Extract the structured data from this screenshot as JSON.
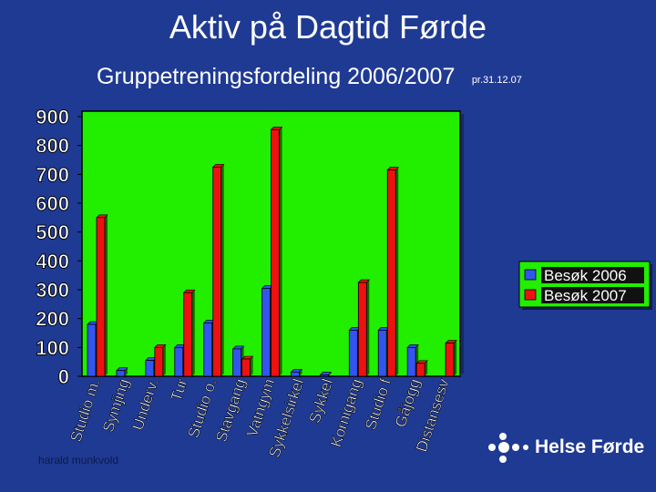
{
  "title": "Aktiv på Dagtid Førde",
  "subtitle": "Gruppetreningsfordeling 2006/2007",
  "subtitle_note": "pr.31.12.07",
  "author": "harald munkvold",
  "logo_text": "Helse Førde",
  "colors": {
    "background": "#1f3a93",
    "plot_area": "#22ee00",
    "series_2006": "#3355ee",
    "series_2007": "#ee1111"
  },
  "chart_data": {
    "type": "bar",
    "title": "",
    "xlabel": "",
    "ylabel": "",
    "ylim": [
      0,
      900
    ],
    "yticks": [
      0,
      100,
      200,
      300,
      400,
      500,
      600,
      700,
      800,
      900
    ],
    "grid": false,
    "legend": "right",
    "categories": [
      "Studio m.",
      "Symjing",
      "Underv.",
      "Tur",
      "Studio o.",
      "Stavgang",
      "Vatngym",
      "Sykkelsirkel",
      "Sykkel",
      "Kornigang",
      "Studio f",
      "Gåjogg",
      "Distansesv"
    ],
    "series": [
      {
        "name": "Besøk 2006",
        "values": [
          180,
          20,
          55,
          100,
          185,
          95,
          305,
          15,
          5,
          160,
          160,
          100,
          0
        ]
      },
      {
        "name": "Besøk 2007",
        "values": [
          550,
          0,
          100,
          290,
          725,
          60,
          855,
          0,
          0,
          325,
          715,
          45,
          115
        ]
      }
    ]
  }
}
